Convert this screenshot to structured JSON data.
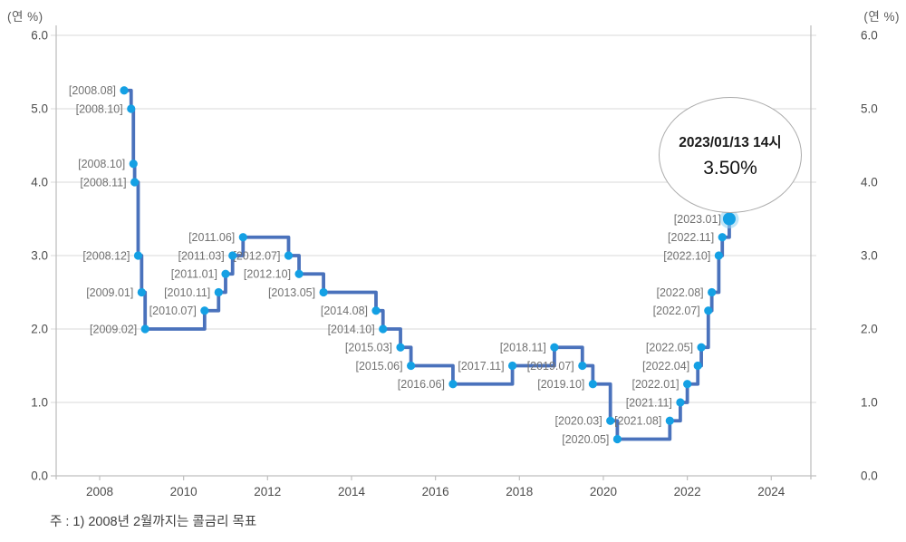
{
  "chart_data": {
    "type": "line",
    "step": "after",
    "unit_left": "(연 %)",
    "unit_right": "(연 %)",
    "ylabel": "(연 %)",
    "ylim": [
      0.0,
      6.0
    ],
    "y_ticks": [
      "6.0",
      "5.0",
      "4.0",
      "3.0",
      "2.0",
      "1.0",
      "0.0"
    ],
    "x_ticks": [
      "2008",
      "2010",
      "2012",
      "2014",
      "2016",
      "2018",
      "2020",
      "2022",
      "2024"
    ],
    "grid": true,
    "legend": "none",
    "points": [
      {
        "label": "[2008.08]",
        "year": 2008,
        "month": 8,
        "value": 5.25
      },
      {
        "label": "[2008.10]",
        "year": 2008,
        "month": 10,
        "value": 5.0
      },
      {
        "label": "[2008.10]",
        "year": 2008,
        "month": 10,
        "value": 4.25
      },
      {
        "label": "[2008.11]",
        "year": 2008,
        "month": 11,
        "value": 4.0
      },
      {
        "label": "[2008.12]",
        "year": 2008,
        "month": 12,
        "value": 3.0
      },
      {
        "label": "[2009.01]",
        "year": 2009,
        "month": 1,
        "value": 2.5
      },
      {
        "label": "[2009.02]",
        "year": 2009,
        "month": 2,
        "value": 2.0
      },
      {
        "label": "[2010.07]",
        "year": 2010,
        "month": 7,
        "value": 2.25
      },
      {
        "label": "[2010.11]",
        "year": 2010,
        "month": 11,
        "value": 2.5
      },
      {
        "label": "[2011.01]",
        "year": 2011,
        "month": 1,
        "value": 2.75
      },
      {
        "label": "[2011.03]",
        "year": 2011,
        "month": 3,
        "value": 3.0
      },
      {
        "label": "[2011.06]",
        "year": 2011,
        "month": 6,
        "value": 3.25
      },
      {
        "label": "[2012.07]",
        "year": 2012,
        "month": 7,
        "value": 3.0
      },
      {
        "label": "[2012.10]",
        "year": 2012,
        "month": 10,
        "value": 2.75
      },
      {
        "label": "[2013.05]",
        "year": 2013,
        "month": 5,
        "value": 2.5
      },
      {
        "label": "[2014.08]",
        "year": 2014,
        "month": 8,
        "value": 2.25
      },
      {
        "label": "[2014.10]",
        "year": 2014,
        "month": 10,
        "value": 2.0
      },
      {
        "label": "[2015.03]",
        "year": 2015,
        "month": 3,
        "value": 1.75
      },
      {
        "label": "[2015.06]",
        "year": 2015,
        "month": 6,
        "value": 1.5
      },
      {
        "label": "[2016.06]",
        "year": 2016,
        "month": 6,
        "value": 1.25
      },
      {
        "label": "[2017.11]",
        "year": 2017,
        "month": 11,
        "value": 1.5
      },
      {
        "label": "[2018.11]",
        "year": 2018,
        "month": 11,
        "value": 1.75
      },
      {
        "label": "[2019.07]",
        "year": 2019,
        "month": 7,
        "value": 1.5
      },
      {
        "label": "[2019.10]",
        "year": 2019,
        "month": 10,
        "value": 1.25
      },
      {
        "label": "[2020.03]",
        "year": 2020,
        "month": 3,
        "value": 0.75
      },
      {
        "label": "[2020.05]",
        "year": 2020,
        "month": 5,
        "value": 0.5
      },
      {
        "label": "[2021.08]",
        "year": 2021,
        "month": 8,
        "value": 0.75
      },
      {
        "label": "[2021.11]",
        "year": 2021,
        "month": 11,
        "value": 1.0
      },
      {
        "label": "[2022.01]",
        "year": 2022,
        "month": 1,
        "value": 1.25
      },
      {
        "label": "[2022.04]",
        "year": 2022,
        "month": 4,
        "value": 1.5
      },
      {
        "label": "[2022.05]",
        "year": 2022,
        "month": 5,
        "value": 1.75
      },
      {
        "label": "[2022.07]",
        "year": 2022,
        "month": 7,
        "value": 2.25
      },
      {
        "label": "[2022.08]",
        "year": 2022,
        "month": 8,
        "value": 2.5
      },
      {
        "label": "[2022.10]",
        "year": 2022,
        "month": 10,
        "value": 3.0
      },
      {
        "label": "[2022.11]",
        "year": 2022,
        "month": 11,
        "value": 3.25
      },
      {
        "label": "[2023.01]",
        "year": 2023,
        "month": 1,
        "value": 3.5
      }
    ],
    "callout": {
      "line1": "2023/01/13 14시",
      "line2": "3.50%"
    },
    "note": "주 : 1) 2008년 2월까지는 콜금리 목표",
    "colors": {
      "line": "#4a72bc",
      "marker": "#14a0e4",
      "marker_halo": "#8fd2f3",
      "grid": "#d9d9d9",
      "axis": "#bfbfbf",
      "point_label": "#717171",
      "tick_label": "#4d4d4d"
    }
  }
}
